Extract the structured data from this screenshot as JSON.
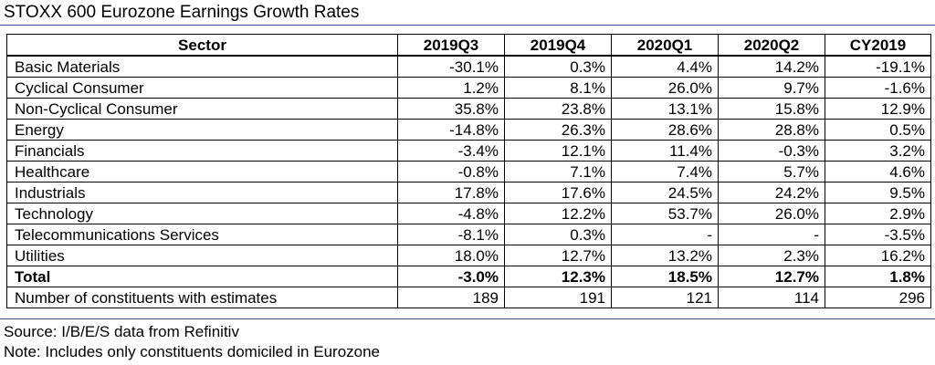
{
  "title": "STOXX 600 Eurozone Earnings Growth Rates",
  "table": {
    "headers": [
      "Sector",
      "2019Q3",
      "2019Q4",
      "2020Q1",
      "2020Q2",
      "CY2019"
    ],
    "rows": [
      {
        "sector": "Basic Materials",
        "values": [
          "-30.1%",
          "0.3%",
          "4.4%",
          "14.2%",
          "-19.1%"
        ]
      },
      {
        "sector": "Cyclical Consumer",
        "values": [
          "1.2%",
          "8.1%",
          "26.0%",
          "9.7%",
          "-1.6%"
        ]
      },
      {
        "sector": "Non-Cyclical Consumer",
        "values": [
          "35.8%",
          "23.8%",
          "13.1%",
          "15.8%",
          "12.9%"
        ]
      },
      {
        "sector": "Energy",
        "values": [
          "-14.8%",
          "26.3%",
          "28.6%",
          "28.8%",
          "0.5%"
        ]
      },
      {
        "sector": "Financials",
        "values": [
          "-3.4%",
          "12.1%",
          "11.4%",
          "-0.3%",
          "3.2%"
        ]
      },
      {
        "sector": "Healthcare",
        "values": [
          "-0.8%",
          "7.1%",
          "7.4%",
          "5.7%",
          "4.6%"
        ]
      },
      {
        "sector": "Industrials",
        "values": [
          "17.8%",
          "17.6%",
          "24.5%",
          "24.2%",
          "9.5%"
        ]
      },
      {
        "sector": "Technology",
        "values": [
          "-4.8%",
          "12.2%",
          "53.7%",
          "26.0%",
          "2.9%"
        ]
      },
      {
        "sector": "Telecommunications Services",
        "values": [
          "-8.1%",
          "0.3%",
          "-",
          "-",
          "-3.5%"
        ]
      },
      {
        "sector": "Utilities",
        "values": [
          "18.0%",
          "12.7%",
          "13.2%",
          "2.3%",
          "16.2%"
        ]
      }
    ],
    "total": {
      "sector": "Total",
      "values": [
        "-3.0%",
        "12.3%",
        "18.5%",
        "12.7%",
        "1.8%"
      ]
    },
    "constituents": {
      "sector": "Number of constituents with estimates",
      "values": [
        "189",
        "191",
        "121",
        "114",
        "296"
      ]
    }
  },
  "source": "Source: I/B/E/S data from Refinitiv",
  "note": "Note: Includes only constituents domiciled in Eurozone",
  "colors": {
    "rule": "#3d4f8a"
  }
}
